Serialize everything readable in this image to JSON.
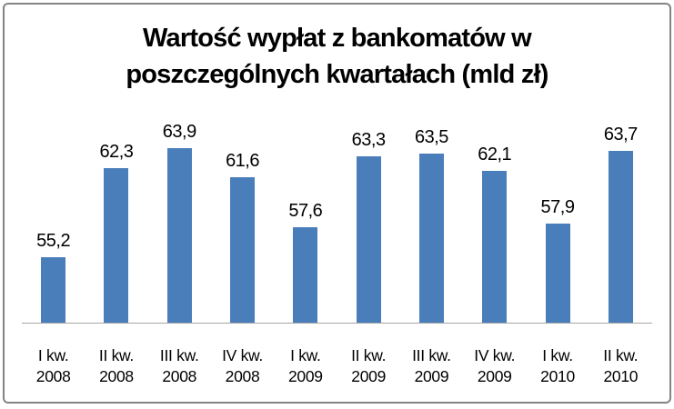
{
  "chart_data": {
    "type": "bar",
    "title": "Wartość wypłat z bankomatów w poszczególnych kwartałach (mld zł)",
    "title_lines": [
      "Wartość wypłat z bankomatów w",
      "poszczególnych kwartałach (mld zł)"
    ],
    "categories": [
      "I kw. 2008",
      "II kw. 2008",
      "III kw. 2008",
      "IV kw. 2008",
      "I kw. 2009",
      "II kw. 2009",
      "III kw. 2009",
      "IV kw. 2009",
      "I kw. 2010",
      "II kw. 2010"
    ],
    "tick_lines": [
      [
        "I kw.",
        "2008"
      ],
      [
        "II kw.",
        "2008"
      ],
      [
        "III kw.",
        "2008"
      ],
      [
        "IV kw.",
        "2008"
      ],
      [
        "I kw.",
        "2009"
      ],
      [
        "II kw.",
        "2009"
      ],
      [
        "III kw.",
        "2009"
      ],
      [
        "IV kw.",
        "2009"
      ],
      [
        "I kw.",
        "2010"
      ],
      [
        "II kw.",
        "2010"
      ]
    ],
    "values": [
      55.2,
      62.3,
      63.9,
      61.6,
      57.6,
      63.3,
      63.5,
      62.1,
      57.9,
      63.7
    ],
    "value_labels": [
      "55,2",
      "62,3",
      "63,9",
      "61,6",
      "57,6",
      "63,3",
      "63,5",
      "62,1",
      "57,9",
      "63,7"
    ],
    "xlabel": "",
    "ylabel": "",
    "ylim": [
      50,
      65
    ],
    "grid": false,
    "legend": "none",
    "data_labels": true,
    "bar_color": "#4A7EBB",
    "axis_line_color": "#A6A6A6",
    "frame_color": "#848484"
  }
}
